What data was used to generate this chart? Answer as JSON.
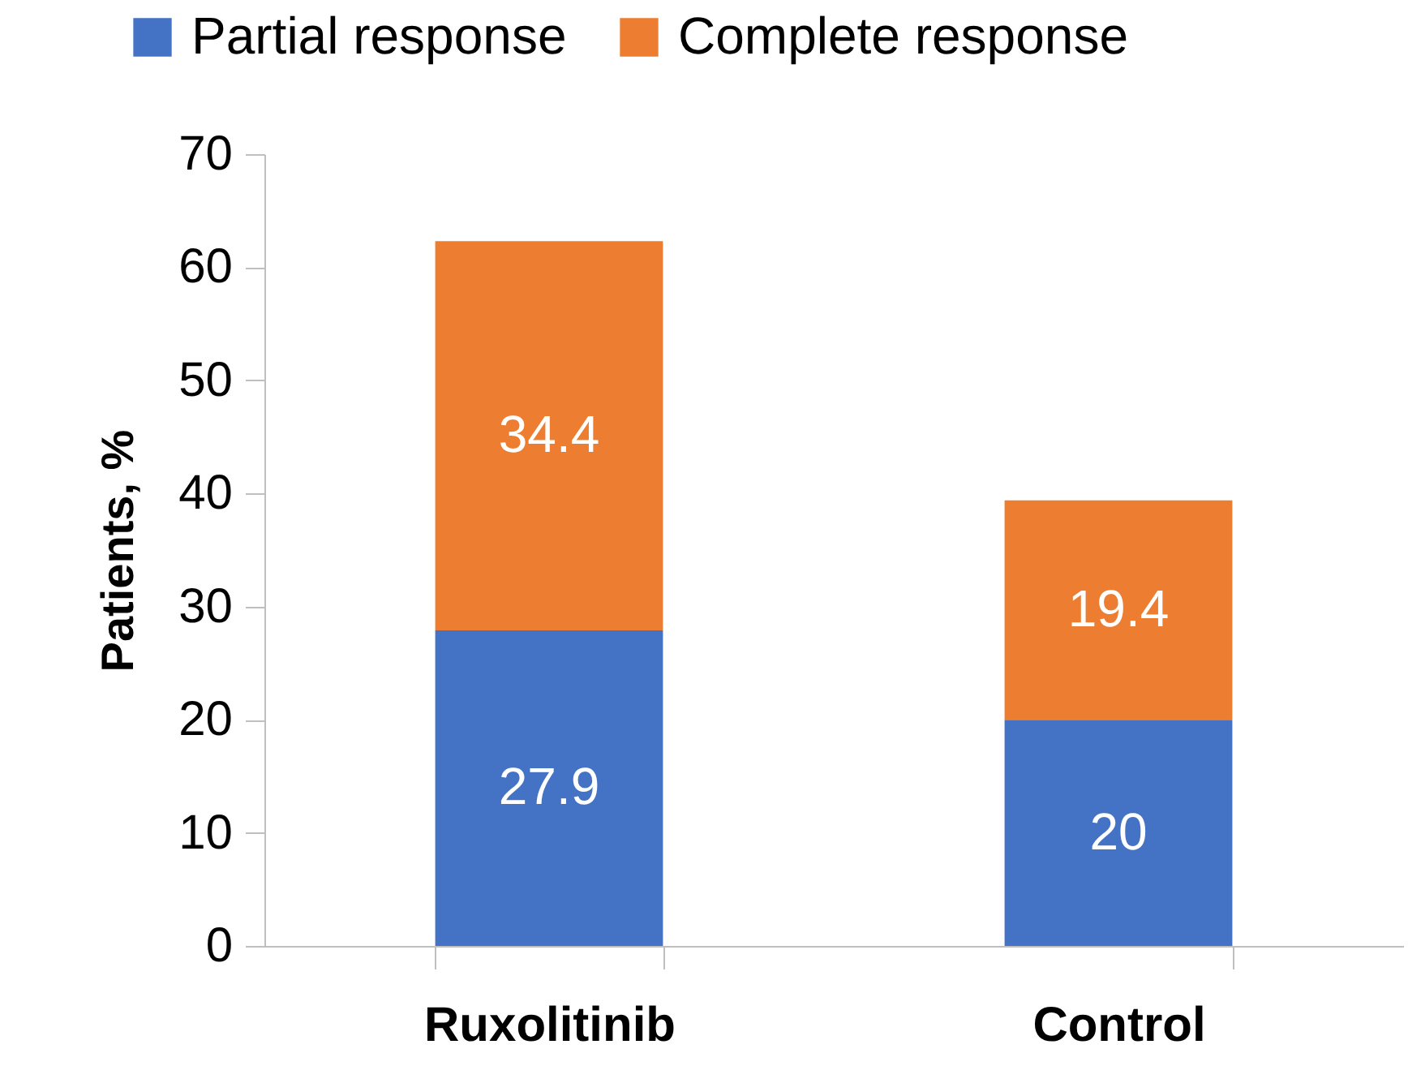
{
  "chart_data": {
    "type": "bar",
    "stacked": true,
    "categories": [
      "Ruxolitinib",
      "Control"
    ],
    "ylabel": "Patients, %",
    "ylim": [
      0,
      70
    ],
    "yticks": [
      0,
      10,
      20,
      30,
      40,
      50,
      60,
      70
    ],
    "legend": "top",
    "data_labels": true,
    "grid": false,
    "series": [
      {
        "name": "Partial response",
        "color": "#4472c4",
        "values": [
          27.9,
          20
        ]
      },
      {
        "name": "Complete response",
        "color": "#ed7d31",
        "values": [
          34.4,
          19.4
        ]
      }
    ]
  }
}
